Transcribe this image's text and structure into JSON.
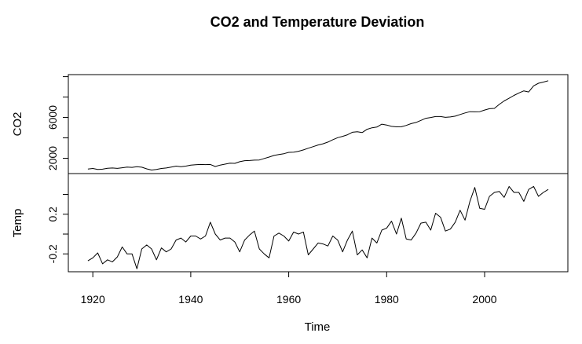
{
  "chart_data": {
    "type": "line",
    "title": "CO2 and Temperature Deviation",
    "xlabel": "Time",
    "xlim": [
      1915,
      2017
    ],
    "x_ticks": [
      "1920",
      "1940",
      "1960",
      "1980",
      "2000"
    ],
    "x_tick_values": [
      1920,
      1940,
      1960,
      1980,
      2000
    ],
    "panels": [
      {
        "name": "CO2",
        "ylabel": "CO2",
        "ylim": [
          500,
          10200
        ],
        "y_ticks": [
          "2000",
          "6000"
        ],
        "y_tick_values": [
          2000,
          6000
        ],
        "y_minor_ticks": [
          2000,
          4000,
          6000,
          8000,
          10000
        ],
        "years": [
          1919,
          1920,
          1921,
          1922,
          1923,
          1924,
          1925,
          1926,
          1927,
          1928,
          1929,
          1930,
          1931,
          1932,
          1933,
          1934,
          1935,
          1936,
          1937,
          1938,
          1939,
          1940,
          1941,
          1942,
          1943,
          1944,
          1945,
          1946,
          1947,
          1948,
          1949,
          1950,
          1951,
          1952,
          1953,
          1954,
          1955,
          1956,
          1957,
          1958,
          1959,
          1960,
          1961,
          1962,
          1963,
          1964,
          1965,
          1966,
          1967,
          1968,
          1969,
          1970,
          1971,
          1972,
          1973,
          1974,
          1975,
          1976,
          1977,
          1978,
          1979,
          1980,
          1981,
          1982,
          1983,
          1984,
          1985,
          1986,
          1987,
          1988,
          1989,
          1990,
          1991,
          1992,
          1993,
          1994,
          1995,
          1996,
          1997,
          1998,
          1999,
          2000,
          2001,
          2002,
          2003,
          2004,
          2005,
          2006,
          2007,
          2008,
          2009,
          2010,
          2011,
          2012,
          2013
        ],
        "values": [
          935,
          1000,
          900,
          930,
          1020,
          1050,
          1010,
          1070,
          1130,
          1110,
          1180,
          1120,
          960,
          850,
          900,
          1000,
          1050,
          1140,
          1230,
          1170,
          1230,
          1320,
          1370,
          1390,
          1380,
          1390,
          1190,
          1330,
          1420,
          1520,
          1500,
          1660,
          1760,
          1780,
          1820,
          1830,
          1980,
          2120,
          2280,
          2360,
          2450,
          2580,
          2600,
          2690,
          2820,
          2990,
          3140,
          3300,
          3420,
          3590,
          3820,
          4020,
          4150,
          4300,
          4550,
          4600,
          4520,
          4840,
          4990,
          5060,
          5340,
          5260,
          5130,
          5080,
          5090,
          5220,
          5400,
          5510,
          5710,
          5920,
          6000,
          6090,
          6090,
          6010,
          6050,
          6130,
          6290,
          6440,
          6570,
          6550,
          6570,
          6730,
          6860,
          6890,
          7280,
          7620,
          7880,
          8160,
          8400,
          8610,
          8500,
          9100,
          9350,
          9470,
          9600
        ]
      },
      {
        "name": "Temp",
        "ylabel": "Temp",
        "ylim": [
          -0.38,
          0.61
        ],
        "y_ticks": [
          "-0.2",
          "0.2"
        ],
        "y_tick_values": [
          -0.2,
          0.2
        ],
        "y_minor_ticks": [
          -0.2,
          0.0,
          0.2,
          0.4
        ],
        "years": [
          1919,
          1920,
          1921,
          1922,
          1923,
          1924,
          1925,
          1926,
          1927,
          1928,
          1929,
          1930,
          1931,
          1932,
          1933,
          1934,
          1935,
          1936,
          1937,
          1938,
          1939,
          1940,
          1941,
          1942,
          1943,
          1944,
          1945,
          1946,
          1947,
          1948,
          1949,
          1950,
          1951,
          1952,
          1953,
          1954,
          1955,
          1956,
          1957,
          1958,
          1959,
          1960,
          1961,
          1962,
          1963,
          1964,
          1965,
          1966,
          1967,
          1968,
          1969,
          1970,
          1971,
          1972,
          1973,
          1974,
          1975,
          1976,
          1977,
          1978,
          1979,
          1980,
          1981,
          1982,
          1983,
          1984,
          1985,
          1986,
          1987,
          1988,
          1989,
          1990,
          1991,
          1992,
          1993,
          1994,
          1995,
          1996,
          1997,
          1998,
          1999,
          2000,
          2001,
          2002,
          2003,
          2004,
          2005,
          2006,
          2007,
          2008,
          2009,
          2010,
          2011,
          2012,
          2013
        ],
        "values": [
          -0.27,
          -0.24,
          -0.19,
          -0.3,
          -0.26,
          -0.28,
          -0.23,
          -0.13,
          -0.2,
          -0.2,
          -0.35,
          -0.15,
          -0.11,
          -0.15,
          -0.26,
          -0.14,
          -0.18,
          -0.15,
          -0.06,
          -0.04,
          -0.08,
          -0.02,
          -0.02,
          -0.05,
          -0.02,
          0.12,
          0.0,
          -0.06,
          -0.04,
          -0.04,
          -0.08,
          -0.18,
          -0.06,
          -0.01,
          0.03,
          -0.15,
          -0.2,
          -0.24,
          -0.02,
          0.01,
          -0.02,
          -0.07,
          0.02,
          0.0,
          0.02,
          -0.21,
          -0.15,
          -0.09,
          -0.1,
          -0.12,
          -0.02,
          -0.06,
          -0.18,
          -0.06,
          0.03,
          -0.21,
          -0.16,
          -0.24,
          -0.04,
          -0.09,
          0.04,
          0.06,
          0.13,
          0.0,
          0.16,
          -0.05,
          -0.06,
          0.01,
          0.11,
          0.12,
          0.04,
          0.21,
          0.17,
          0.03,
          0.05,
          0.12,
          0.24,
          0.14,
          0.33,
          0.47,
          0.26,
          0.25,
          0.38,
          0.42,
          0.43,
          0.37,
          0.48,
          0.42,
          0.42,
          0.33,
          0.45,
          0.48,
          0.38,
          0.42,
          0.45
        ]
      }
    ]
  }
}
